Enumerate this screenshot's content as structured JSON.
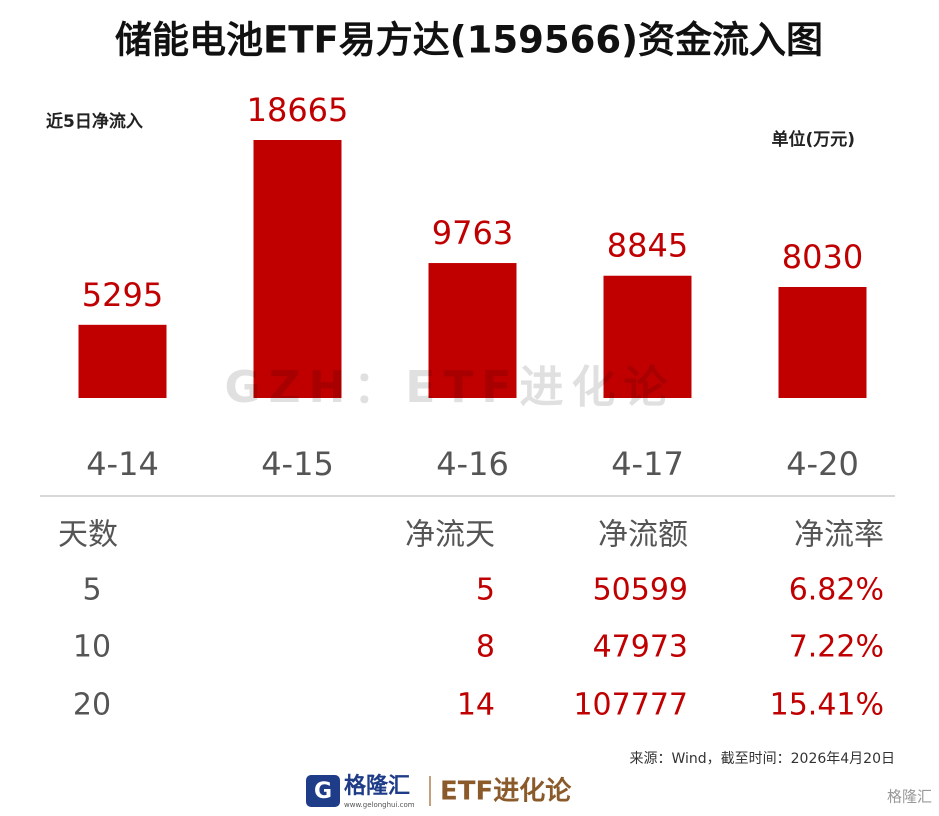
{
  "chart_data": {
    "type": "bar",
    "title": "储能电池ETF易方达(159566)资金流入图",
    "subtitle": "近5日净流入",
    "unit": "单位(万元)",
    "categories": [
      "4-14",
      "4-15",
      "4-16",
      "4-17",
      "4-20"
    ],
    "values": [
      5295,
      18665,
      9763,
      8845,
      8030
    ],
    "color": "#c00000"
  },
  "table": {
    "header": [
      "天数",
      "净流天",
      "净流额",
      "净流率"
    ],
    "rows": [
      [
        "5",
        "5",
        "50599",
        "6.82%"
      ],
      [
        "10",
        "8",
        "47973",
        "7.22%"
      ],
      [
        "20",
        "14",
        "107777",
        "15.41%"
      ]
    ]
  },
  "watermark": "GZH：ETF进化论",
  "source": "来源：Wind，截至时间：2026年4月20日",
  "footer": {
    "logo": "格隆汇",
    "site": "www.gelonghui.com",
    "brand": "ETF进化论",
    "corner": "格隆汇"
  }
}
